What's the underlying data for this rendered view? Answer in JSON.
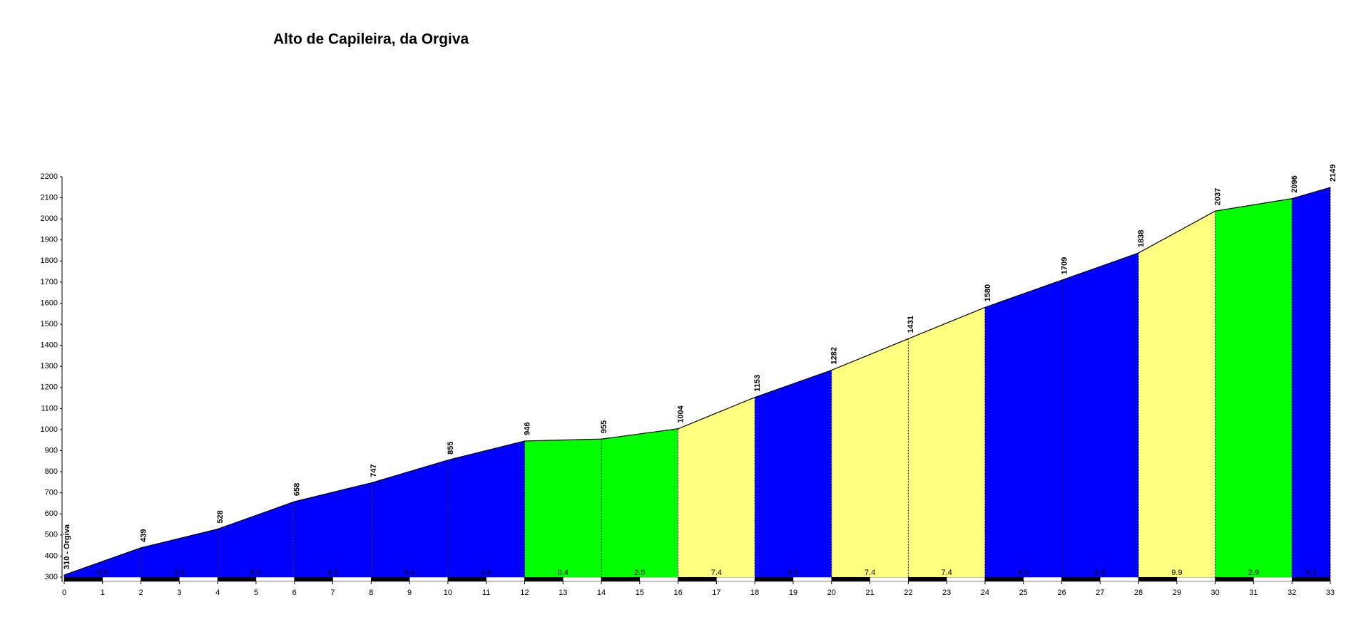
{
  "chart_data": {
    "type": "profile",
    "title": "Alto de Capileira, da Orgiva",
    "x": [
      0,
      2,
      4,
      6,
      8,
      10,
      12,
      14,
      16,
      18,
      20,
      22,
      24,
      26,
      28,
      30,
      32,
      33
    ],
    "values": [
      310,
      439,
      528,
      658,
      747,
      855,
      946,
      955,
      1004,
      1153,
      1282,
      1431,
      1580,
      1709,
      1838,
      2037,
      2096,
      2149
    ],
    "value_labels": [
      "310 - Orgiva",
      "439",
      "528",
      "658",
      "747",
      "855",
      "946",
      "955",
      "1004",
      "1153",
      "1282",
      "1431",
      "1580",
      "1709",
      "1838",
      "2037",
      "2096",
      "2149"
    ],
    "gradients": [
      6.5,
      4.5,
      6.5,
      4.5,
      5.4,
      4.6,
      0.4,
      2.5,
      7.4,
      6.5,
      7.4,
      7.4,
      6.5,
      6.5,
      9.9,
      2.9,
      5.3
    ],
    "segment_colors": [
      "#0000ff",
      "#0000ff",
      "#0000ff",
      "#0000ff",
      "#0000ff",
      "#0000ff",
      "#00ff00",
      "#00ff00",
      "#ffff80",
      "#0000ff",
      "#ffff80",
      "#ffff80",
      "#0000ff",
      "#0000ff",
      "#ffff80",
      "#00ff00",
      "#0000ff"
    ],
    "xlim": [
      0,
      33
    ],
    "xticks": [
      0,
      1,
      2,
      3,
      4,
      5,
      6,
      7,
      8,
      9,
      10,
      11,
      12,
      13,
      14,
      15,
      16,
      17,
      18,
      19,
      20,
      21,
      22,
      23,
      24,
      25,
      26,
      27,
      28,
      29,
      30,
      31,
      32,
      33
    ],
    "ylim": [
      300,
      2200
    ],
    "yticks": [
      300,
      400,
      500,
      600,
      700,
      800,
      900,
      1000,
      1100,
      1200,
      1300,
      1400,
      1500,
      1600,
      1700,
      1800,
      1900,
      2000,
      2100,
      2200
    ]
  }
}
